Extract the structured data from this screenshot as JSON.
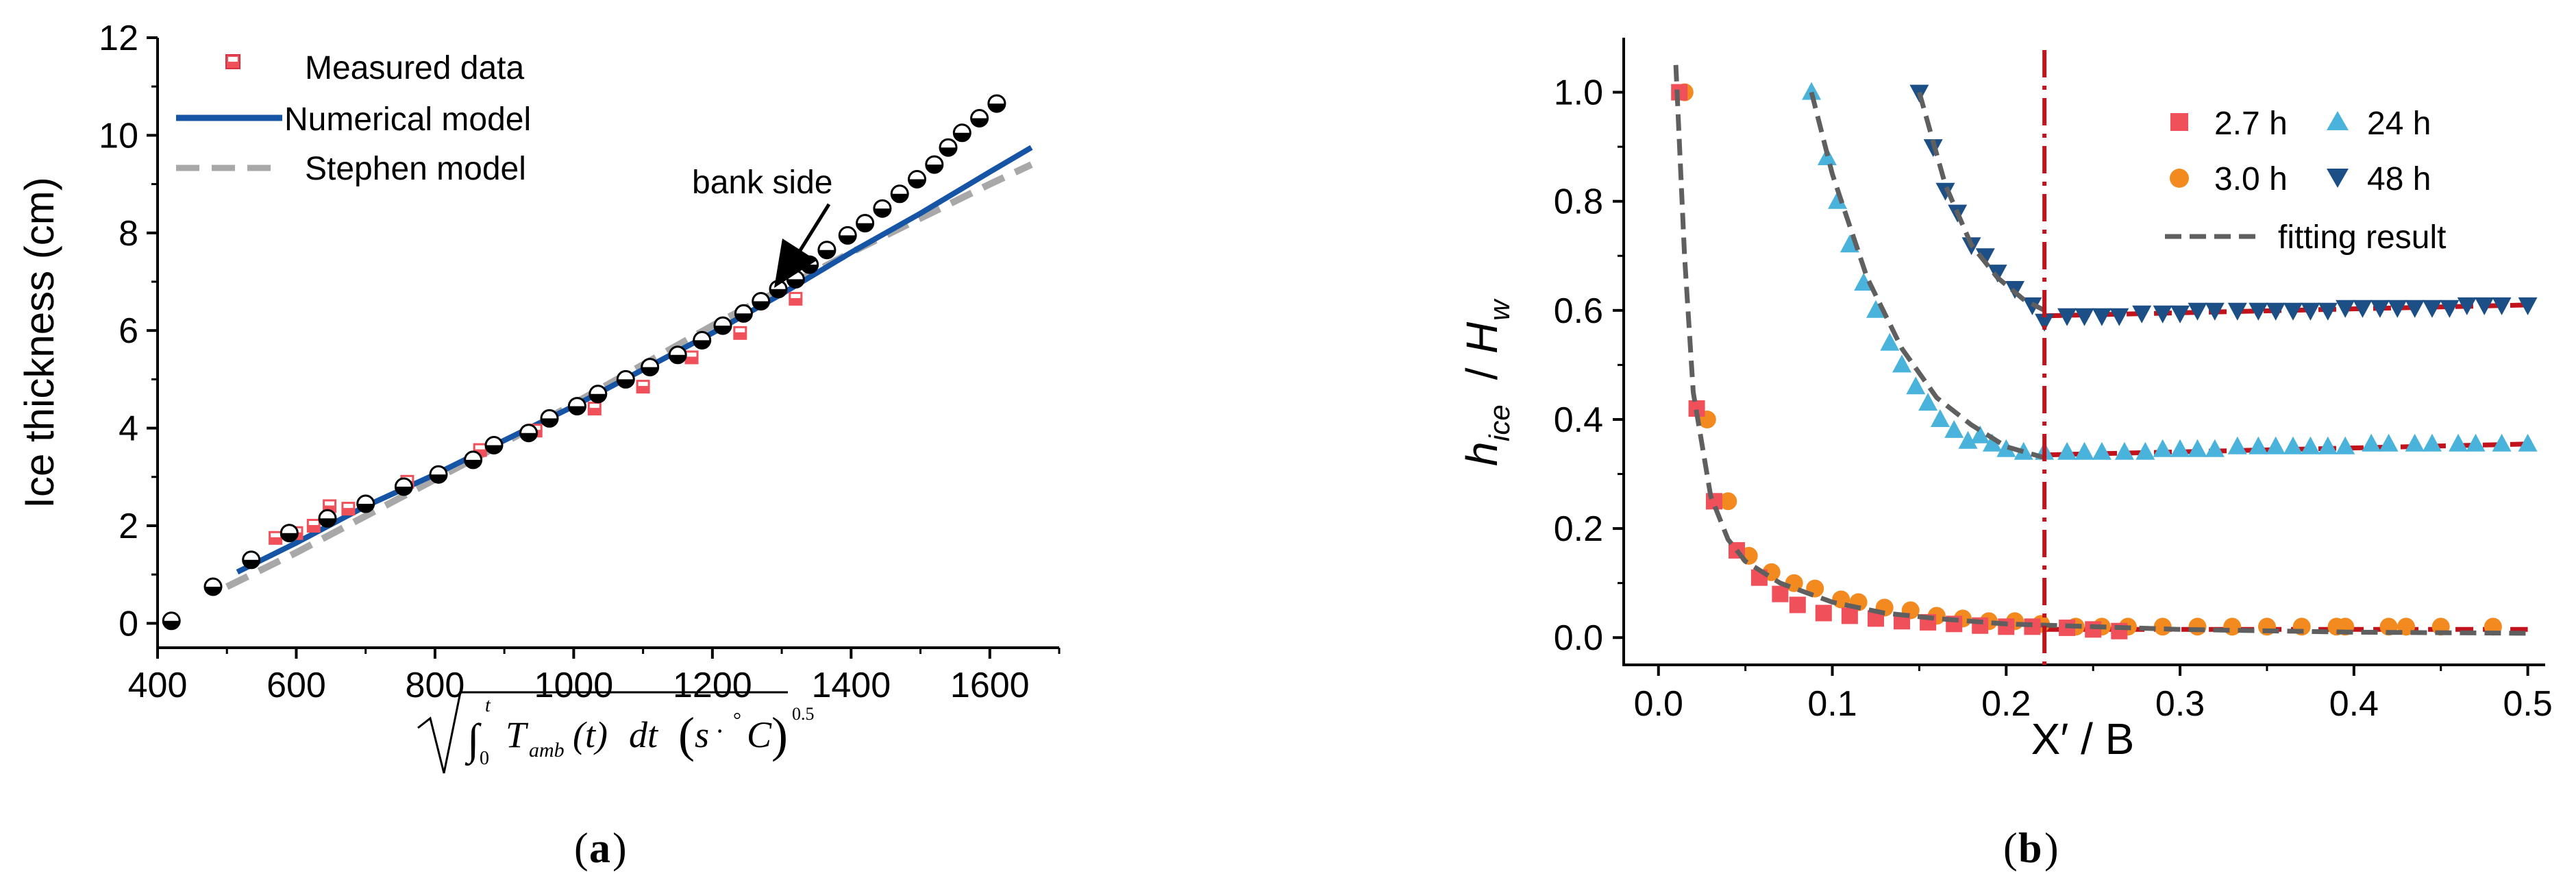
{
  "colors": {
    "measured": "#f0505a",
    "numerical": "#1655a5",
    "stephen": "#a8a8a8",
    "orange": "#f28a1f",
    "light_blue": "#4ab3dc",
    "dark_blue": "#1c4f86",
    "fit": "#5f5f5f",
    "vline": "#c2121b",
    "red_dash": "#c2121b"
  },
  "panel_a": {
    "caption_open": "(",
    "caption_letter": "a",
    "caption_close": ")",
    "legend": {
      "measured": "Measured  data",
      "numerical": "Numerical model",
      "stephen": "Stephen   model"
    },
    "annotation": "bank side",
    "xlabel_parts": {
      "t": "t",
      "zero": "0",
      "T": "T",
      "amb": "amb",
      "t_paren": "(t)",
      "dt": "dt",
      "unit": "s",
      "dot": "·",
      "degree": "°",
      "C": "C",
      "exp": "0.5"
    }
  },
  "panel_b": {
    "caption_open": "(",
    "caption_letter": "b",
    "caption_close": ")",
    "ylabel": {
      "h": "h",
      "ice": "ice",
      "slash": " / ",
      "H": "H",
      "w": "w"
    },
    "legend": {
      "s27": "2.7 h",
      "s30": "3.0 h",
      "s24": "24 h",
      "s48": "48 h",
      "fit": "fitting result"
    }
  },
  "chart_data": [
    {
      "type": "scatter",
      "title": "",
      "xlabel": "√(∫₀ᵗ T_amb(t) dt) (s·°C)^0.5",
      "ylabel": "Ice thickness (cm)",
      "xlim": [
        400,
        1700
      ],
      "ylim": [
        -0.5,
        12
      ],
      "xticks": [
        400,
        600,
        800,
        1000,
        1200,
        1400,
        1600
      ],
      "yticks": [
        0,
        2,
        4,
        6,
        8,
        10,
        12
      ],
      "legend_position": "top-left",
      "series": [
        {
          "name": "Measured  data",
          "marker": "square",
          "x": [
            570,
            600,
            625,
            648,
            675,
            760,
            865,
            945,
            1030,
            1100,
            1170,
            1240,
            1320
          ],
          "y": [
            1.75,
            1.85,
            2.0,
            2.4,
            2.35,
            2.9,
            3.55,
            3.95,
            4.4,
            4.85,
            5.45,
            5.95,
            6.65
          ]
        },
        {
          "name": "bank side",
          "marker": "half-filled circle",
          "x": [
            420,
            480,
            535,
            590,
            645,
            700,
            755,
            805,
            855,
            885,
            935,
            965,
            1005,
            1035,
            1075,
            1110,
            1150,
            1185,
            1215,
            1245,
            1270,
            1295,
            1320,
            1340,
            1365,
            1395,
            1420,
            1445,
            1470,
            1495,
            1520,
            1540,
            1560,
            1585,
            1610
          ],
          "y": [
            0.05,
            0.75,
            1.3,
            1.85,
            2.15,
            2.45,
            2.8,
            3.05,
            3.35,
            3.65,
            3.9,
            4.2,
            4.45,
            4.7,
            5.0,
            5.25,
            5.5,
            5.8,
            6.1,
            6.35,
            6.6,
            6.85,
            7.05,
            7.35,
            7.65,
            7.95,
            8.2,
            8.5,
            8.8,
            9.1,
            9.4,
            9.75,
            10.05,
            10.35,
            10.65
          ]
        },
        {
          "name": "Numerical model",
          "type": "line",
          "x": [
            515,
            600,
            700,
            800,
            900,
            1000,
            1100,
            1200,
            1300,
            1400,
            1500,
            1600,
            1660
          ],
          "y": [
            1.05,
            1.65,
            2.4,
            3.05,
            3.75,
            4.45,
            5.2,
            5.95,
            6.75,
            7.6,
            8.4,
            9.25,
            9.75
          ]
        },
        {
          "name": "Stephen   model",
          "type": "line",
          "style": "dashed",
          "x": [
            500,
            600,
            700,
            800,
            900,
            1000,
            1100,
            1200,
            1300,
            1400,
            1500,
            1600,
            1660
          ],
          "y": [
            0.75,
            1.45,
            2.2,
            2.95,
            3.7,
            4.5,
            5.3,
            6.1,
            6.85,
            7.6,
            8.3,
            9.0,
            9.4
          ]
        }
      ]
    },
    {
      "type": "scatter",
      "title": "",
      "xlabel": "X′ / B",
      "ylabel": "h_ice / H_w",
      "xlim": [
        -0.02,
        0.51
      ],
      "ylim": [
        -0.05,
        1.1
      ],
      "xticks": [
        0.0,
        0.1,
        0.2,
        0.3,
        0.4,
        0.5
      ],
      "yticks": [
        0.0,
        0.2,
        0.4,
        0.6,
        0.8,
        1.0
      ],
      "vertical_line_x": 0.222,
      "legend_position": "top-right",
      "series": [
        {
          "name": "2.7 h",
          "marker": "square",
          "x": [
            0.012,
            0.022,
            0.032,
            0.045,
            0.058,
            0.07,
            0.08,
            0.095,
            0.11,
            0.125,
            0.14,
            0.155,
            0.17,
            0.185,
            0.2,
            0.215,
            0.235,
            0.25,
            0.265
          ],
          "y": [
            1.0,
            0.42,
            0.25,
            0.16,
            0.11,
            0.08,
            0.06,
            0.045,
            0.04,
            0.035,
            0.03,
            0.028,
            0.025,
            0.022,
            0.02,
            0.02,
            0.018,
            0.015,
            0.012
          ]
        },
        {
          "name": "3.0 h",
          "marker": "circle",
          "x": [
            0.015,
            0.028,
            0.04,
            0.052,
            0.065,
            0.078,
            0.09,
            0.105,
            0.115,
            0.13,
            0.145,
            0.16,
            0.175,
            0.19,
            0.205,
            0.22,
            0.24,
            0.255,
            0.27,
            0.29,
            0.31,
            0.33,
            0.35,
            0.37,
            0.39,
            0.395,
            0.42,
            0.43,
            0.45,
            0.48
          ],
          "y": [
            1.0,
            0.4,
            0.25,
            0.15,
            0.12,
            0.1,
            0.09,
            0.07,
            0.065,
            0.055,
            0.05,
            0.04,
            0.035,
            0.03,
            0.03,
            0.025,
            0.02,
            0.02,
            0.02,
            0.02,
            0.02,
            0.02,
            0.02,
            0.02,
            0.02,
            0.02,
            0.02,
            0.02,
            0.02,
            0.02
          ]
        },
        {
          "name": "24 h",
          "marker": "triangle-up",
          "x": [
            0.088,
            0.097,
            0.103,
            0.11,
            0.118,
            0.125,
            0.133,
            0.14,
            0.148,
            0.155,
            0.162,
            0.17,
            0.178,
            0.185,
            0.192,
            0.2,
            0.21,
            0.222,
            0.235,
            0.245,
            0.255,
            0.268,
            0.28,
            0.29,
            0.3,
            0.31,
            0.32,
            0.333,
            0.345,
            0.355,
            0.365,
            0.375,
            0.385,
            0.395,
            0.41,
            0.42,
            0.435,
            0.445,
            0.46,
            0.47,
            0.485,
            0.5
          ],
          "y": [
            1.0,
            0.88,
            0.8,
            0.72,
            0.65,
            0.6,
            0.54,
            0.5,
            0.46,
            0.43,
            0.4,
            0.38,
            0.36,
            0.37,
            0.355,
            0.345,
            0.34,
            0.34,
            0.34,
            0.34,
            0.34,
            0.34,
            0.34,
            0.345,
            0.345,
            0.345,
            0.345,
            0.35,
            0.35,
            0.35,
            0.35,
            0.35,
            0.35,
            0.35,
            0.355,
            0.355,
            0.355,
            0.355,
            0.355,
            0.355,
            0.355,
            0.355
          ]
        },
        {
          "name": "48 h",
          "marker": "triangle-down",
          "x": [
            0.15,
            0.158,
            0.165,
            0.172,
            0.18,
            0.188,
            0.195,
            0.205,
            0.215,
            0.222,
            0.235,
            0.245,
            0.255,
            0.265,
            0.278,
            0.29,
            0.3,
            0.31,
            0.32,
            0.333,
            0.345,
            0.355,
            0.365,
            0.375,
            0.385,
            0.395,
            0.405,
            0.415,
            0.425,
            0.435,
            0.445,
            0.455,
            0.465,
            0.475,
            0.485,
            0.5
          ],
          "y": [
            1.0,
            0.9,
            0.82,
            0.78,
            0.72,
            0.7,
            0.67,
            0.64,
            0.61,
            0.58,
            0.59,
            0.59,
            0.59,
            0.59,
            0.595,
            0.595,
            0.595,
            0.6,
            0.6,
            0.6,
            0.6,
            0.6,
            0.6,
            0.6,
            0.6,
            0.605,
            0.605,
            0.605,
            0.605,
            0.605,
            0.605,
            0.605,
            0.61,
            0.61,
            0.61,
            0.61
          ]
        },
        {
          "name": "fitting result",
          "type": "line",
          "style": "dashed",
          "curves": [
            {
              "x": [
                0.01,
                0.015,
                0.02,
                0.03,
                0.04,
                0.05,
                0.07,
                0.1,
                0.13,
                0.16,
                0.2,
                0.25,
                0.3,
                0.4,
                0.5
              ],
              "y": [
                1.05,
                0.7,
                0.45,
                0.26,
                0.18,
                0.14,
                0.1,
                0.065,
                0.045,
                0.035,
                0.025,
                0.02,
                0.015,
                0.01,
                0.008
              ]
            },
            {
              "x": [
                0.088,
                0.1,
                0.12,
                0.14,
                0.16,
                0.18,
                0.2,
                0.222
              ],
              "y": [
                1.0,
                0.85,
                0.66,
                0.53,
                0.44,
                0.39,
                0.35,
                0.33
              ]
            },
            {
              "x": [
                0.15,
                0.165,
                0.18,
                0.195,
                0.21,
                0.222
              ],
              "y": [
                1.0,
                0.83,
                0.72,
                0.66,
                0.62,
                0.6
              ]
            }
          ]
        },
        {
          "name": "",
          "type": "line",
          "style": "dashed",
          "curves": [
            {
              "x": [
                0.222,
                0.5
              ],
              "y": [
                0.59,
                0.61
              ]
            },
            {
              "x": [
                0.222,
                0.5
              ],
              "y": [
                0.335,
                0.355
              ]
            },
            {
              "x": [
                0.222,
                0.5
              ],
              "y": [
                0.015,
                0.015
              ]
            }
          ]
        }
      ]
    }
  ]
}
